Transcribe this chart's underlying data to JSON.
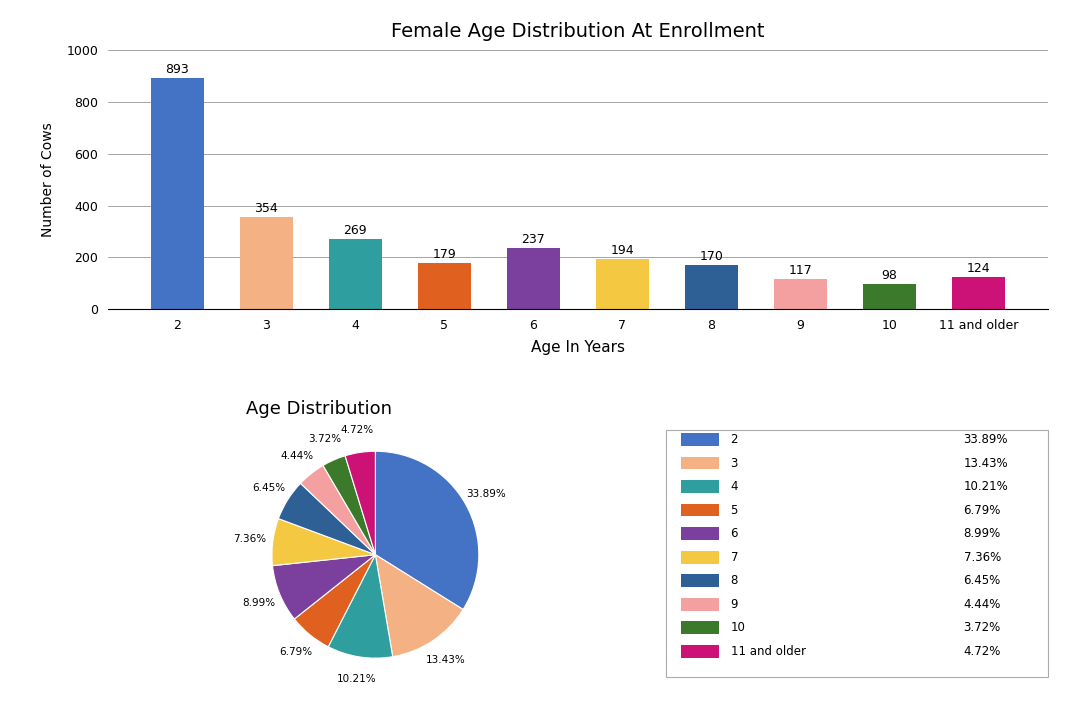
{
  "title": "Female Age Distribution At Enrollment",
  "bar_categories": [
    "2",
    "3",
    "4",
    "5",
    "6",
    "7",
    "8",
    "9",
    "10",
    "11 and older"
  ],
  "bar_values": [
    893,
    354,
    269,
    179,
    237,
    194,
    170,
    117,
    98,
    124
  ],
  "bar_colors": [
    "#4472C4",
    "#F4B183",
    "#2E9E9E",
    "#E06020",
    "#7B3F9E",
    "#F5C842",
    "#2E6096",
    "#F4A0A0",
    "#3A7A2A",
    "#CC1177"
  ],
  "bar_xlabel": "Age In Years",
  "bar_ylabel": "Number of Cows",
  "bar_ylim": [
    0,
    1000
  ],
  "bar_yticks": [
    0,
    200,
    400,
    600,
    800,
    1000
  ],
  "pie_title": "Age Distribution",
  "pie_labels": [
    "2",
    "3",
    "4",
    "5",
    "6",
    "7",
    "8",
    "9",
    "10",
    "11 and older"
  ],
  "pie_values": [
    33.89,
    13.43,
    10.21,
    6.79,
    8.99,
    7.36,
    6.45,
    4.44,
    3.72,
    4.72
  ],
  "pie_colors": [
    "#4472C4",
    "#F4B183",
    "#2E9E9E",
    "#E06020",
    "#7B3F9E",
    "#F5C842",
    "#2E6096",
    "#F4A0A0",
    "#3A7A2A",
    "#CC1177"
  ],
  "legend_labels": [
    "2",
    "3",
    "4",
    "5",
    "6",
    "7",
    "8",
    "9",
    "10",
    "11 and older"
  ],
  "legend_percents": [
    "33.89%",
    "13.43%",
    "10.21%",
    "6.79%",
    "8.99%",
    "7.36%",
    "6.45%",
    "4.44%",
    "3.72%",
    "4.72%"
  ],
  "background_color": "#FFFFFF"
}
